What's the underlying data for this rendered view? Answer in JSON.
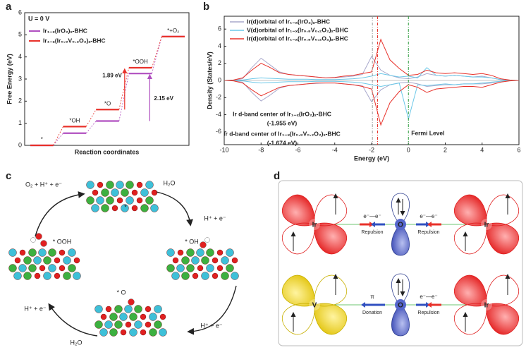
{
  "panel_labels": [
    "a",
    "b",
    "c",
    "d"
  ],
  "chart_data": [
    {
      "type": "step",
      "condition": "U = 0 V",
      "ylabel": "Free Energy (eV)",
      "xlabel": "Reaction coordinates",
      "categories": [
        "*",
        "*OH",
        "*O",
        "*OOH",
        "*+O₂"
      ],
      "series": [
        {
          "name": "Ir₁₋ₓ(IrO₂)ₓ-BHC",
          "color": "#b04fc0",
          "values": [
            0,
            0.55,
            1.1,
            3.25,
            4.92
          ]
        },
        {
          "name": "Ir₁₋ₓ(Ir₀.₈V₀.₂O₂)ₓ-BHC",
          "color": "#e8312a",
          "values": [
            0,
            0.85,
            1.62,
            3.51,
            4.92
          ]
        }
      ],
      "annotations": [
        {
          "text": "1.89 eV",
          "color": "#e8312a"
        },
        {
          "text": "2.15 eV",
          "color": "#b04fc0"
        }
      ],
      "ylim": [
        0,
        6
      ],
      "yticks": [
        0,
        1,
        2,
        3,
        4,
        5,
        6
      ]
    },
    {
      "type": "line",
      "ylabel": "Density (States/eV)",
      "xlabel": "Energy (eV)",
      "x": [
        -10,
        -9.5,
        -9,
        -8.5,
        -8,
        -7.5,
        -7,
        -6.5,
        -6,
        -5.5,
        -5,
        -4.5,
        -4,
        -3.5,
        -3,
        -2.5,
        -2,
        -1.5,
        -1,
        -0.5,
        0,
        0.5,
        1,
        1.5,
        2,
        2.5,
        3,
        3.5,
        4,
        4.5,
        5,
        5.5,
        6
      ],
      "series": [
        {
          "name": "Ir(d)orbital of Ir₁₋ₓ(IrO₂)ₓ-BHC",
          "color": "#a9a9cc",
          "values": [
            0,
            0,
            0.2,
            1.5,
            2.6,
            1.8,
            1.0,
            0.7,
            0.6,
            0.5,
            0.4,
            0.3,
            0.3,
            0.4,
            0.5,
            0.7,
            2.8,
            1.2,
            0.6,
            0.3,
            0.2,
            0.4,
            0.8,
            0.6,
            0.5,
            0.6,
            0.5,
            0.4,
            0.5,
            0.3,
            0.1,
            0,
            0
          ],
          "values_down": [
            0,
            0,
            -0.2,
            -1.4,
            -2.4,
            -1.7,
            -0.9,
            -0.6,
            -0.5,
            -0.4,
            -0.35,
            -0.3,
            -0.3,
            -0.4,
            -0.5,
            -0.6,
            -2.5,
            -1.1,
            -0.5,
            -0.3,
            -0.2,
            -0.4,
            -0.7,
            -0.6,
            -0.5,
            -0.5,
            -0.4,
            -0.4,
            -0.4,
            -0.3,
            -0.1,
            0,
            0
          ]
        },
        {
          "name": "V(d)orbital of Ir₁₋ₓ(Ir₀.₈V₀.₂O₂)ₓ-BHC",
          "color": "#6cc8e8",
          "values": [
            0,
            0,
            0.05,
            0.2,
            0.3,
            0.25,
            0.2,
            0.15,
            0.15,
            0.15,
            0.1,
            0.1,
            0.1,
            0.15,
            0.2,
            0.3,
            0.5,
            0.8,
            0.6,
            0.4,
            0.5,
            0.3,
            1.5,
            0.6,
            0.5,
            0.6,
            0.5,
            0.4,
            0.4,
            0.3,
            0.1,
            0,
            0
          ],
          "values_down": [
            0,
            0,
            -0.05,
            -0.2,
            -0.3,
            -0.25,
            -0.2,
            -0.15,
            -0.15,
            -0.15,
            -0.1,
            -0.1,
            -0.1,
            -0.15,
            -0.2,
            -0.3,
            -0.5,
            -0.7,
            -0.5,
            -0.3,
            -4.5,
            -0.5,
            -0.6,
            -0.5,
            -0.4,
            -0.5,
            -0.4,
            -0.4,
            -0.3,
            -0.2,
            -0.1,
            0,
            0
          ]
        },
        {
          "name": "Ir(d)orbital of Ir₁₋ₓ(Ir₀.₈V₀.₂O₂)ₓ-BHC",
          "color": "#e8312a",
          "values": [
            0,
            0.05,
            0.3,
            1.2,
            2.0,
            1.5,
            0.9,
            0.7,
            0.6,
            0.5,
            0.4,
            0.3,
            0.35,
            0.5,
            0.6,
            0.8,
            1.0,
            4.8,
            2.4,
            1.4,
            0.6,
            0.7,
            1.2,
            0.9,
            0.8,
            0.9,
            0.8,
            0.7,
            0.8,
            0.6,
            0.2,
            0.05,
            0
          ],
          "values_down": [
            0,
            -0.05,
            -0.3,
            -1.1,
            -1.8,
            -1.3,
            -0.8,
            -0.6,
            -0.5,
            -0.4,
            -0.3,
            -0.3,
            -0.3,
            -0.4,
            -0.5,
            -0.7,
            -1.0,
            -5.2,
            -2.6,
            -1.3,
            -0.5,
            -0.8,
            -1.4,
            -1.0,
            -0.9,
            -0.8,
            -0.7,
            -0.7,
            -0.8,
            -0.5,
            -0.2,
            -0.05,
            0
          ]
        }
      ],
      "markers": [
        {
          "value": -1.955,
          "text": "Ir d-band center of Ir₁₋ₓ(IrO₂)ₓ-BHC",
          "label": "(-1.955 eV)",
          "color": "#9a9a9a"
        },
        {
          "value": -1.674,
          "text": "Ir d-band center of Ir₁₋ₓ(Ir₀.₈V₀.₂O₂)ₓ-BHC",
          "label": "(-1.674 eV)",
          "color": "#e8312a"
        },
        {
          "value": 0,
          "text": "Fermi Level",
          "color": "#2a9a3a"
        }
      ],
      "xlim": [
        -10,
        6
      ],
      "xticks": [
        -10,
        -8,
        -6,
        -4,
        -2,
        0,
        2,
        4,
        6
      ],
      "ylim": [
        -7.5,
        7.5
      ],
      "yticks": [
        -6,
        -4,
        -2,
        0,
        2,
        4,
        6
      ]
    }
  ],
  "cycle": {
    "states": [
      "*",
      "* OH",
      "* O",
      "* OOH"
    ],
    "steps": [
      "H₂O",
      "H⁺ + e⁻",
      "H⁺ + e⁻",
      "H₂O",
      "H⁺ + e⁻",
      "O₂ + H⁺ + e⁻"
    ]
  },
  "orbitals": {
    "row1": {
      "left": "Ir",
      "center": "O",
      "right": "Ir",
      "left_top": "e⁻—e⁻",
      "left_bottom": "Repulsion",
      "right_top": "e⁻—e⁻",
      "right_bottom": "Repulsion"
    },
    "row2": {
      "left": "V",
      "center": "O",
      "right": "Ir",
      "left_top": "π",
      "left_bottom": "Donation",
      "right_top": "e⁻—e⁻",
      "right_bottom": "Repulsion"
    }
  }
}
